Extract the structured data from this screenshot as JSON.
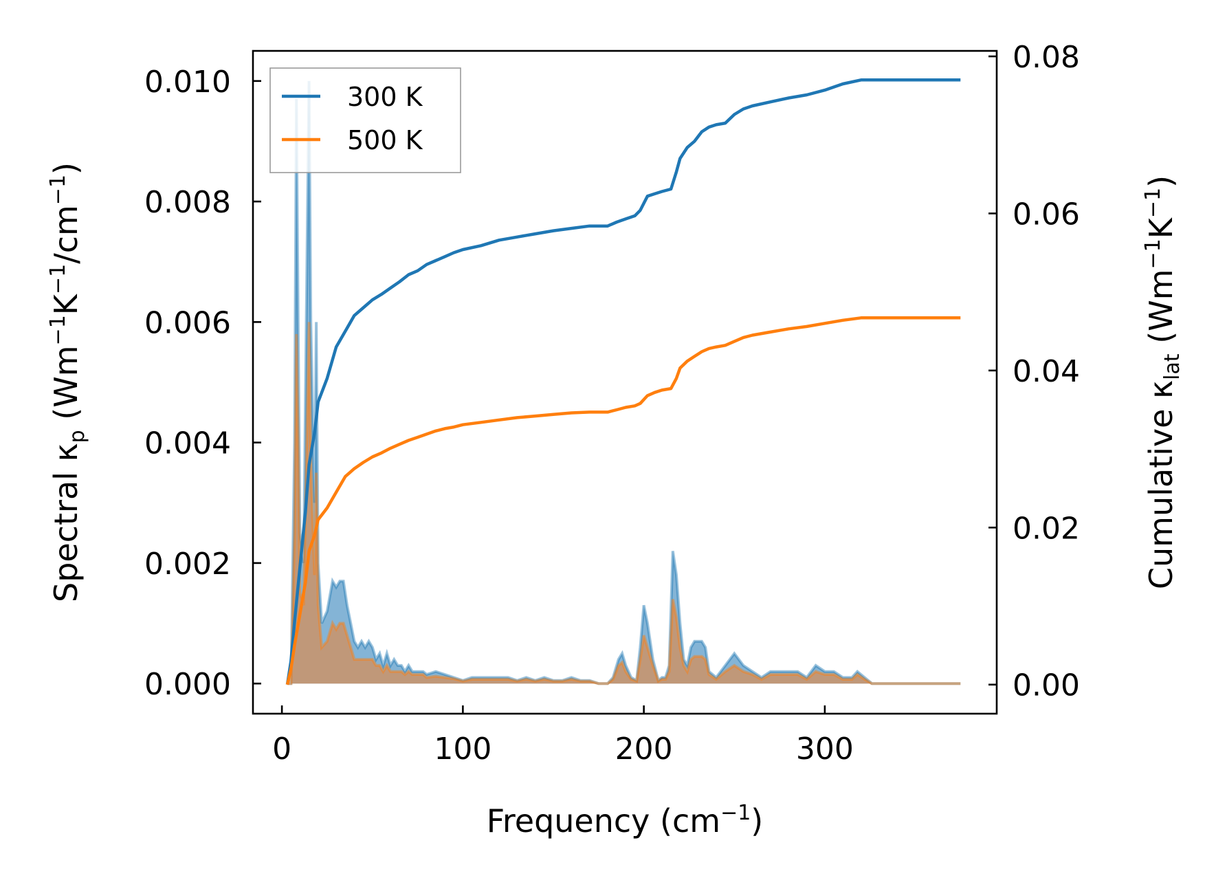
{
  "chart_data": {
    "type": "line",
    "xlabel": "Frequency (cm⁻¹)",
    "ylabel_left": "Spectral κₚ (Wm⁻¹K⁻¹/cm⁻¹)",
    "ylabel_right": "Cumulative κ_lat (Wm⁻¹K⁻¹)",
    "xlim": [
      -16,
      395
    ],
    "ylim_left": [
      -0.0005,
      0.0105
    ],
    "ylim_right": [
      -0.0037,
      0.0807
    ],
    "x_ticks": [
      0,
      100,
      200,
      300
    ],
    "x_tick_labels": [
      "0",
      "100",
      "200",
      "300"
    ],
    "y_left_ticks": [
      0,
      0.002,
      0.004,
      0.006,
      0.008,
      0.01
    ],
    "y_left_tick_labels": [
      "0.000",
      "0.002",
      "0.004",
      "0.006",
      "0.008",
      "0.010"
    ],
    "y_right_ticks": [
      0,
      0.02,
      0.04,
      0.06,
      0.08
    ],
    "y_right_tick_labels": [
      "0.00",
      "0.02",
      "0.04",
      "0.06",
      "0.08"
    ],
    "legend": {
      "placement": "top-left",
      "entries": [
        "300 K",
        "500 K"
      ]
    },
    "grid": false,
    "series": [
      {
        "name": "300 K",
        "color": "#1f77b4",
        "spectral": {
          "x": [
            3,
            5,
            7,
            8,
            9,
            10,
            12,
            14,
            15,
            16,
            18,
            19,
            20,
            22,
            25,
            28,
            30,
            32,
            34,
            36,
            38,
            40,
            42,
            44,
            46,
            48,
            50,
            52,
            54,
            56,
            58,
            60,
            62,
            64,
            66,
            68,
            70,
            72,
            75,
            78,
            80,
            85,
            90,
            95,
            100,
            105,
            110,
            115,
            120,
            125,
            130,
            135,
            140,
            145,
            150,
            155,
            160,
            165,
            170,
            175,
            180,
            183,
            186,
            188,
            190,
            193,
            196,
            198,
            200,
            202,
            205,
            208,
            210,
            212,
            214,
            216,
            218,
            220,
            222,
            224,
            226,
            228,
            230,
            232,
            234,
            236,
            240,
            245,
            250,
            255,
            260,
            265,
            270,
            275,
            280,
            285,
            290,
            295,
            300,
            305,
            310,
            315,
            318,
            322,
            326,
            330,
            340,
            350,
            360,
            375
          ],
          "y": [
            0,
            0,
            0.004,
            0.0097,
            0.006,
            0.0025,
            0.002,
            0.0075,
            0.01,
            0.006,
            0.003,
            0.006,
            0.002,
            0.001,
            0.0012,
            0.0017,
            0.0016,
            0.0017,
            0.0017,
            0.0013,
            0.001,
            0.0007,
            0.0006,
            0.0007,
            0.0006,
            0.0007,
            0.0006,
            0.0004,
            0.0005,
            0.0003,
            0.0005,
            0.0003,
            0.0004,
            0.0003,
            0.0003,
            0.0002,
            0.0003,
            0.0002,
            0.0002,
            0.0002,
            0.00015,
            0.0002,
            0.00015,
            0.0001,
            5e-05,
            0.0001,
            0.0001,
            0.0001,
            0.0001,
            0.0001,
            5e-05,
            0.0001,
            5e-05,
            0.0001,
            5e-05,
            5e-05,
            0.0001,
            5e-05,
            5e-05,
            0,
            0,
            0.0001,
            0.0004,
            0.0005,
            0.0003,
            0.0001,
            5e-05,
            0.0006,
            0.0013,
            0.001,
            0.0004,
            5e-05,
            0.0001,
            0.0001,
            0.0003,
            0.0022,
            0.0018,
            0.001,
            0.0004,
            0.0003,
            0.0006,
            0.0007,
            0.0007,
            0.0007,
            0.0006,
            0.0002,
            0.0001,
            0.0003,
            0.0005,
            0.0003,
            0.0002,
            0.0001,
            0.0002,
            0.0002,
            0.0002,
            0.0002,
            0.0001,
            0.0003,
            0.0002,
            0.0002,
            0.0001,
            0.0001,
            0.0002,
            0.0001,
            0,
            0,
            0,
            0,
            0,
            0
          ]
        },
        "cumulative": {
          "x": [
            3,
            5,
            7,
            10,
            13,
            15,
            18,
            20,
            25,
            30,
            35,
            40,
            45,
            50,
            55,
            60,
            65,
            70,
            75,
            80,
            85,
            90,
            95,
            100,
            110,
            120,
            130,
            140,
            150,
            160,
            170,
            180,
            185,
            190,
            195,
            198,
            202,
            206,
            210,
            215,
            218,
            220,
            224,
            228,
            232,
            236,
            240,
            245,
            250,
            255,
            260,
            270,
            280,
            290,
            300,
            310,
            320,
            330,
            350,
            375
          ],
          "y": [
            0,
            0.003,
            0.008,
            0.015,
            0.022,
            0.028,
            0.032,
            0.036,
            0.039,
            0.043,
            0.045,
            0.047,
            0.048,
            0.049,
            0.0497,
            0.0505,
            0.0513,
            0.0522,
            0.0527,
            0.0535,
            0.054,
            0.0545,
            0.055,
            0.0554,
            0.0559,
            0.0566,
            0.057,
            0.0574,
            0.0578,
            0.0581,
            0.0584,
            0.0584,
            0.0589,
            0.0593,
            0.0597,
            0.0604,
            0.0622,
            0.0625,
            0.0628,
            0.0631,
            0.0653,
            0.067,
            0.0684,
            0.0692,
            0.0704,
            0.071,
            0.0713,
            0.0715,
            0.0726,
            0.0733,
            0.0737,
            0.0742,
            0.0747,
            0.0751,
            0.0757,
            0.0765,
            0.077,
            0.077,
            0.077,
            0.077
          ]
        }
      },
      {
        "name": "500 K",
        "color": "#ff7f0e",
        "spectral": {
          "x": [
            3,
            5,
            7,
            8,
            9,
            10,
            12,
            14,
            15,
            16,
            18,
            19,
            20,
            22,
            25,
            28,
            30,
            32,
            34,
            36,
            38,
            40,
            42,
            44,
            46,
            48,
            50,
            52,
            54,
            56,
            58,
            60,
            62,
            64,
            66,
            68,
            70,
            72,
            75,
            78,
            80,
            85,
            90,
            95,
            100,
            105,
            110,
            115,
            120,
            125,
            130,
            135,
            140,
            145,
            150,
            155,
            160,
            165,
            170,
            175,
            180,
            183,
            186,
            188,
            190,
            193,
            196,
            198,
            200,
            202,
            205,
            208,
            210,
            212,
            214,
            216,
            218,
            220,
            222,
            224,
            226,
            228,
            230,
            232,
            234,
            236,
            240,
            245,
            250,
            255,
            260,
            265,
            270,
            275,
            280,
            285,
            290,
            295,
            300,
            305,
            310,
            315,
            318,
            322,
            326,
            330,
            340,
            350,
            360,
            375
          ],
          "y": [
            0,
            0,
            0.0025,
            0.0058,
            0.004,
            0.0015,
            0.0013,
            0.0045,
            0.006,
            0.0037,
            0.0018,
            0.0035,
            0.0013,
            0.0006,
            0.0007,
            0.001,
            0.0009,
            0.001,
            0.001,
            0.0008,
            0.0006,
            0.0004,
            0.0004,
            0.0004,
            0.0004,
            0.0004,
            0.0004,
            0.0003,
            0.0003,
            0.0002,
            0.0003,
            0.0002,
            0.0002,
            0.0002,
            0.0002,
            0.00015,
            0.0002,
            0.00015,
            0.00015,
            0.00015,
            0.0001,
            0.00012,
            0.0001,
            8e-05,
            4e-05,
            7e-05,
            7e-05,
            7e-05,
            7e-05,
            7e-05,
            4e-05,
            7e-05,
            4e-05,
            7e-05,
            4e-05,
            4e-05,
            7e-05,
            4e-05,
            4e-05,
            0,
            0,
            7e-05,
            0.0003,
            0.00035,
            0.0002,
            7e-05,
            4e-05,
            0.0004,
            0.0008,
            0.0006,
            0.0003,
            4e-05,
            7e-05,
            7e-05,
            0.0002,
            0.0014,
            0.0011,
            0.0006,
            0.0003,
            0.0002,
            0.0004,
            0.00045,
            0.00045,
            0.00045,
            0.0004,
            0.00015,
            7e-05,
            0.0002,
            0.0003,
            0.0002,
            0.00015,
            7e-05,
            0.00015,
            0.00015,
            0.00015,
            0.00015,
            7e-05,
            0.0002,
            0.00015,
            0.00015,
            7e-05,
            7e-05,
            0.00015,
            7e-05,
            0,
            0,
            0,
            0,
            0,
            0
          ]
        },
        "cumulative": {
          "x": [
            3,
            5,
            7,
            10,
            13,
            15,
            18,
            20,
            25,
            30,
            35,
            40,
            45,
            50,
            55,
            60,
            65,
            70,
            75,
            80,
            85,
            90,
            95,
            100,
            110,
            120,
            130,
            140,
            150,
            160,
            170,
            180,
            185,
            190,
            195,
            198,
            202,
            206,
            210,
            215,
            218,
            220,
            224,
            228,
            232,
            236,
            240,
            245,
            250,
            255,
            260,
            270,
            280,
            290,
            300,
            310,
            320,
            330,
            350,
            375
          ],
          "y": [
            0,
            0.002,
            0.005,
            0.009,
            0.013,
            0.017,
            0.019,
            0.021,
            0.0225,
            0.0245,
            0.0265,
            0.0275,
            0.0283,
            0.029,
            0.0295,
            0.0301,
            0.0306,
            0.0311,
            0.0315,
            0.0319,
            0.0323,
            0.0326,
            0.0328,
            0.0331,
            0.0334,
            0.0337,
            0.034,
            0.0342,
            0.0344,
            0.0346,
            0.0347,
            0.0347,
            0.035,
            0.0353,
            0.0355,
            0.0358,
            0.0368,
            0.0372,
            0.0375,
            0.0377,
            0.039,
            0.0403,
            0.0412,
            0.0418,
            0.0424,
            0.0428,
            0.043,
            0.0432,
            0.0437,
            0.0442,
            0.0445,
            0.0449,
            0.0453,
            0.0456,
            0.046,
            0.0464,
            0.0467,
            0.0467,
            0.0467,
            0.0467
          ]
        }
      }
    ]
  }
}
